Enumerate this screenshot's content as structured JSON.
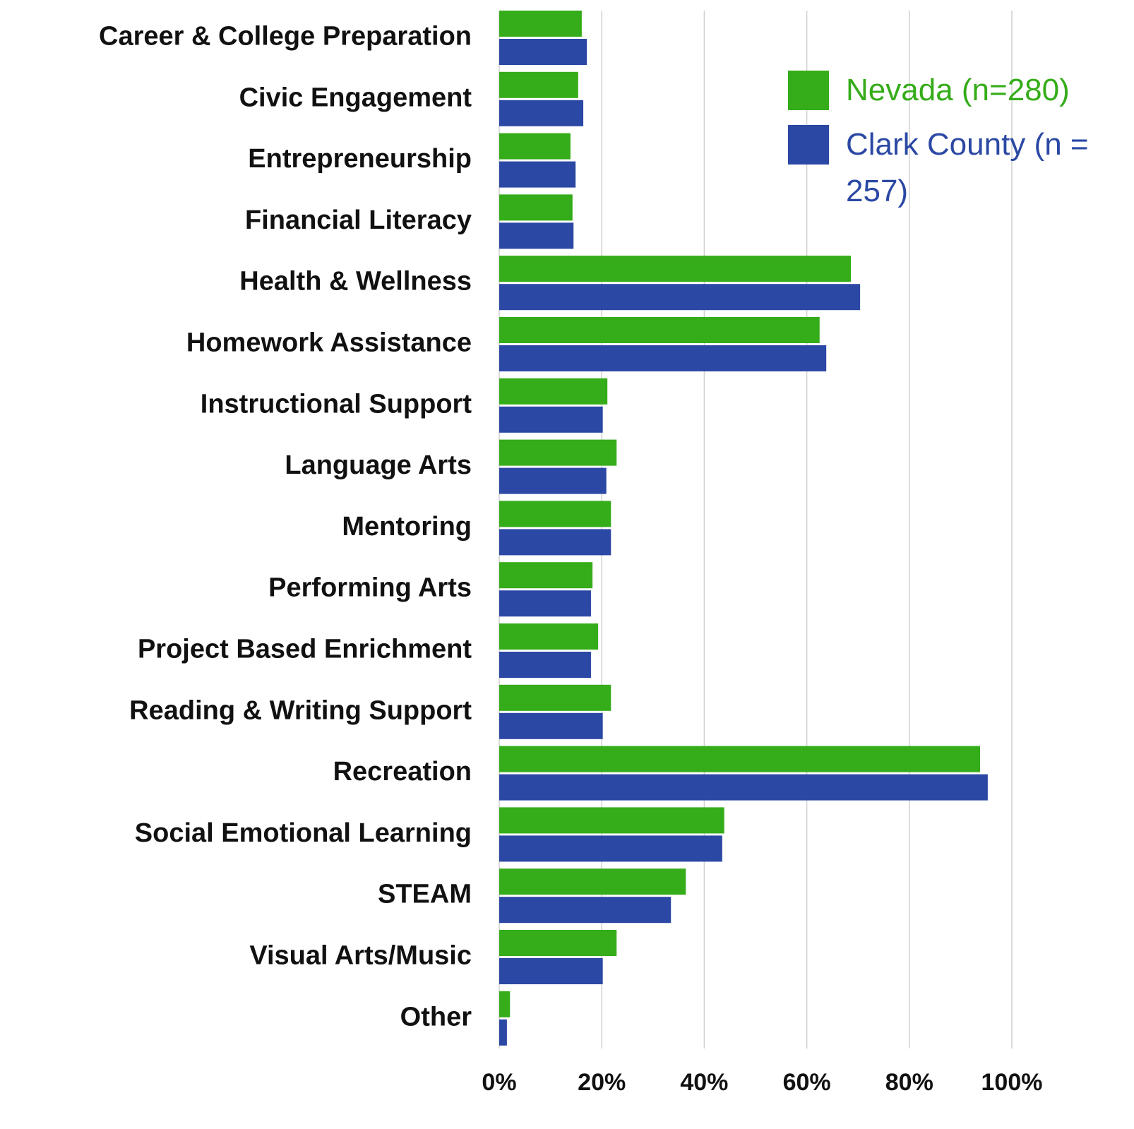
{
  "chart_data": {
    "type": "bar",
    "orientation": "horizontal",
    "categories": [
      "Career & College Preparation",
      "Civic Engagement",
      "Entrepreneurship",
      "Financial Literacy",
      "Health & Wellness",
      "Homework Assistance",
      "Instructional Support",
      "Language Arts",
      "Mentoring",
      "Performing Arts",
      "Project Based Enrichment",
      "Reading & Writing Support",
      "Recreation",
      "Social Emotional Learning",
      "STEAM",
      "Visual Arts/Music",
      "Other"
    ],
    "series": [
      {
        "name": "Nevada (n=280)",
        "color": "#35ac19",
        "values": [
          16.1,
          15.4,
          13.9,
          14.3,
          68.6,
          62.5,
          21.1,
          22.9,
          21.8,
          18.2,
          19.3,
          21.8,
          93.8,
          43.9,
          36.4,
          22.9,
          2.1
        ]
      },
      {
        "name": "Clark County (n =  257)",
        "color": "#2b48a4",
        "values": [
          17.1,
          16.4,
          14.9,
          14.5,
          70.4,
          63.8,
          20.2,
          20.9,
          21.8,
          17.9,
          17.9,
          20.2,
          95.3,
          43.5,
          33.5,
          20.2,
          1.5
        ]
      }
    ],
    "xlim": [
      0,
      100
    ],
    "xticks": [
      {
        "value": 0,
        "label": "0%"
      },
      {
        "value": 20,
        "label": "20%"
      },
      {
        "value": 40,
        "label": "40%"
      },
      {
        "value": 60,
        "label": "60%"
      },
      {
        "value": 80,
        "label": "80%"
      },
      {
        "value": 100,
        "label": "100%"
      }
    ],
    "grid": true,
    "legend": "upper right"
  }
}
